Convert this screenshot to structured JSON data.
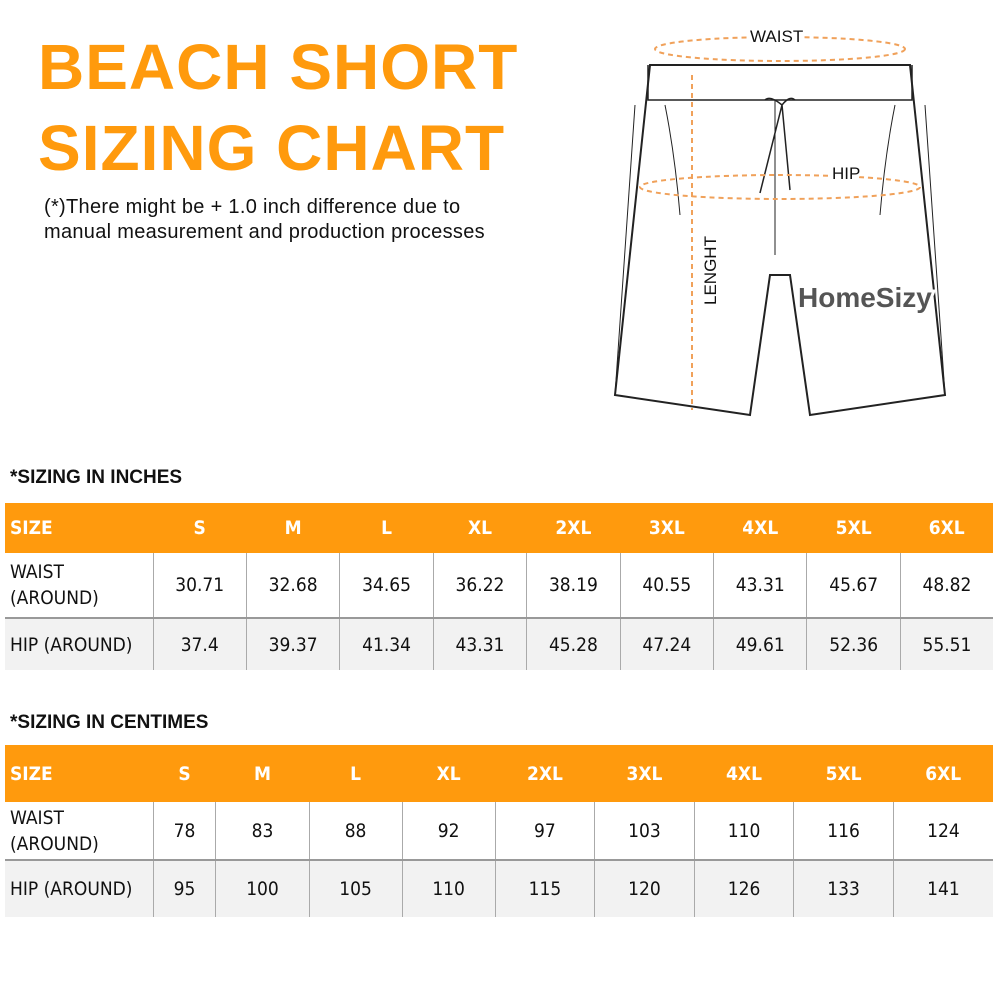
{
  "title_line1": "BEACH SHORT",
  "title_line2": "SIZING CHART",
  "note_line1": "(*)There might be + 1.0 inch difference due to",
  "note_line2": "manual measurement and production processes",
  "diagram": {
    "waist": "WAIST",
    "hip": "HIP",
    "length": "LENGHT",
    "brand": "HomeSizy"
  },
  "colors": {
    "accent": "#ff9a0d"
  },
  "inches": {
    "heading": "*SIZING IN INCHES",
    "header": [
      "SIZE",
      "S",
      "M",
      "L",
      "XL",
      "2XL",
      "3XL",
      "4XL",
      "5XL",
      "6XL"
    ],
    "rows": [
      [
        "WAIST (AROUND)",
        "30.71",
        "32.68",
        "34.65",
        "36.22",
        "38.19",
        "40.55",
        "43.31",
        "45.67",
        "48.82"
      ],
      [
        "HIP (AROUND)",
        "37.4",
        "39.37",
        "41.34",
        "43.31",
        "45.28",
        "47.24",
        "49.61",
        "52.36",
        "55.51"
      ]
    ]
  },
  "cm": {
    "heading": "*SIZING IN CENTIMES",
    "header": [
      "SIZE",
      "S",
      "M",
      "L",
      "XL",
      "2XL",
      "3XL",
      "4XL",
      "5XL",
      "6XL"
    ],
    "rows": [
      [
        "WAIST (AROUND)",
        "78",
        "83",
        "88",
        "92",
        "97",
        "103",
        "110",
        "116",
        "124"
      ],
      [
        "HIP (AROUND)",
        "95",
        "100",
        "105",
        "110",
        "115",
        "120",
        "126",
        "133",
        "141"
      ]
    ]
  }
}
